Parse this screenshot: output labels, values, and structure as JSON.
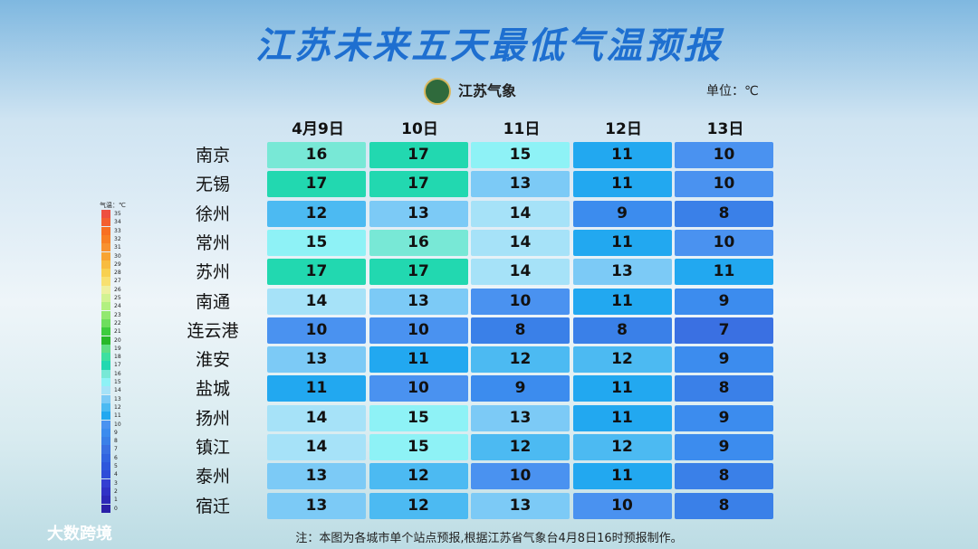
{
  "header": {
    "title": "江苏未来五天最低气温预报",
    "logo": "江苏气象",
    "unit": "单位：℃"
  },
  "table": {
    "columns": [
      "4月9日",
      "10日",
      "11日",
      "12日",
      "13日"
    ],
    "rows": [
      {
        "name": "南京",
        "values": [
          16,
          17,
          15,
          11,
          10
        ]
      },
      {
        "name": "无锡",
        "values": [
          17,
          17,
          13,
          11,
          10
        ]
      },
      {
        "name": "徐州",
        "values": [
          12,
          13,
          14,
          9,
          8
        ]
      },
      {
        "name": "常州",
        "values": [
          15,
          16,
          14,
          11,
          10
        ]
      },
      {
        "name": "苏州",
        "values": [
          17,
          17,
          14,
          13,
          11
        ]
      },
      {
        "name": "南通",
        "values": [
          14,
          13,
          10,
          11,
          9
        ]
      },
      {
        "name": "连云港",
        "values": [
          10,
          10,
          8,
          8,
          7
        ]
      },
      {
        "name": "淮安",
        "values": [
          13,
          11,
          12,
          12,
          9
        ]
      },
      {
        "name": "盐城",
        "values": [
          11,
          10,
          9,
          11,
          8
        ]
      },
      {
        "name": "扬州",
        "values": [
          14,
          15,
          13,
          11,
          9
        ]
      },
      {
        "name": "镇江",
        "values": [
          14,
          15,
          12,
          12,
          9
        ]
      },
      {
        "name": "泰州",
        "values": [
          13,
          12,
          10,
          11,
          8
        ]
      },
      {
        "name": "宿迁",
        "values": [
          13,
          12,
          13,
          10,
          8
        ]
      }
    ]
  },
  "legend": {
    "title": "气温：℃",
    "levels": [
      {
        "value": 0,
        "color": "#2a1fa8"
      },
      {
        "value": 1,
        "color": "#2c28b8"
      },
      {
        "value": 2,
        "color": "#3032c6"
      },
      {
        "value": 3,
        "color": "#343ed2"
      },
      {
        "value": 4,
        "color": "#2f4cd8"
      },
      {
        "value": 5,
        "color": "#2e58dc"
      },
      {
        "value": 6,
        "color": "#3264e0"
      },
      {
        "value": 7,
        "color": "#3a70e2"
      },
      {
        "value": 8,
        "color": "#3a80e8"
      },
      {
        "value": 9,
        "color": "#3c8cee"
      },
      {
        "value": 10,
        "color": "#4a92f0"
      },
      {
        "value": 11,
        "color": "#22a8f0"
      },
      {
        "value": 12,
        "color": "#4cbaf2"
      },
      {
        "value": 13,
        "color": "#7ccaf6"
      },
      {
        "value": 14,
        "color": "#a6e2f8"
      },
      {
        "value": 15,
        "color": "#8ef2f6"
      },
      {
        "value": 16,
        "color": "#78e8d6"
      },
      {
        "value": 17,
        "color": "#22d8b0"
      },
      {
        "value": 18,
        "color": "#3ee0a0"
      },
      {
        "value": 19,
        "color": "#5ede84"
      },
      {
        "value": 20,
        "color": "#28b828"
      },
      {
        "value": 21,
        "color": "#3ecc3e"
      },
      {
        "value": 22,
        "color": "#6ede5e"
      },
      {
        "value": 23,
        "color": "#92e870"
      },
      {
        "value": 24,
        "color": "#b2f080"
      },
      {
        "value": 25,
        "color": "#d2f292"
      },
      {
        "value": 26,
        "color": "#eef0a0"
      },
      {
        "value": 27,
        "color": "#f8e070"
      },
      {
        "value": 28,
        "color": "#f8d050"
      },
      {
        "value": 29,
        "color": "#f8bc40"
      },
      {
        "value": 30,
        "color": "#f8a432"
      },
      {
        "value": 31,
        "color": "#f89230"
      },
      {
        "value": 32,
        "color": "#f88024"
      },
      {
        "value": 33,
        "color": "#f87022"
      },
      {
        "value": 34,
        "color": "#f46030"
      },
      {
        "value": 35,
        "color": "#ee5040"
      }
    ]
  },
  "footer": {
    "note": "注：本图为各城市单个站点预报,根据江苏省气象台4月8日16时预报制作。",
    "watermark": "大数跨境"
  }
}
